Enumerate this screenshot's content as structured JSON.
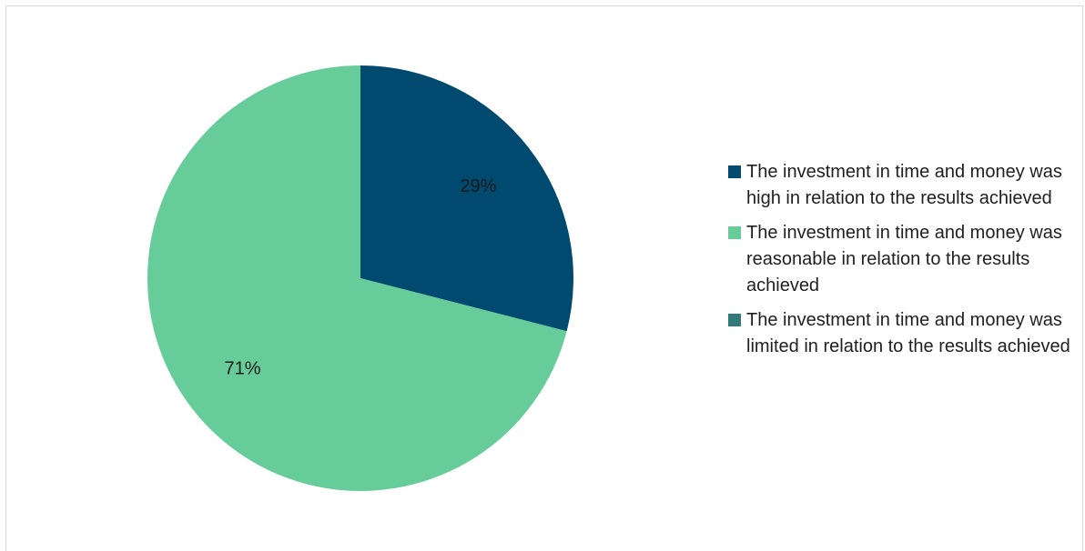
{
  "chart_data": {
    "type": "pie",
    "title": "",
    "slices": [
      {
        "label": "The investment in time and money was high in relation to the results achieved",
        "value": 29,
        "display": "29%",
        "color": "#004a6f"
      },
      {
        "label": "The investment in time and money was reasonable in relation to the results achieved",
        "value": 71,
        "display": "71%",
        "color": "#66cc99"
      },
      {
        "label": "The investment in time and money was limited in relation to the results achieved",
        "value": 0,
        "display": "",
        "color": "#2f7b7b"
      }
    ],
    "legend_position": "right"
  }
}
